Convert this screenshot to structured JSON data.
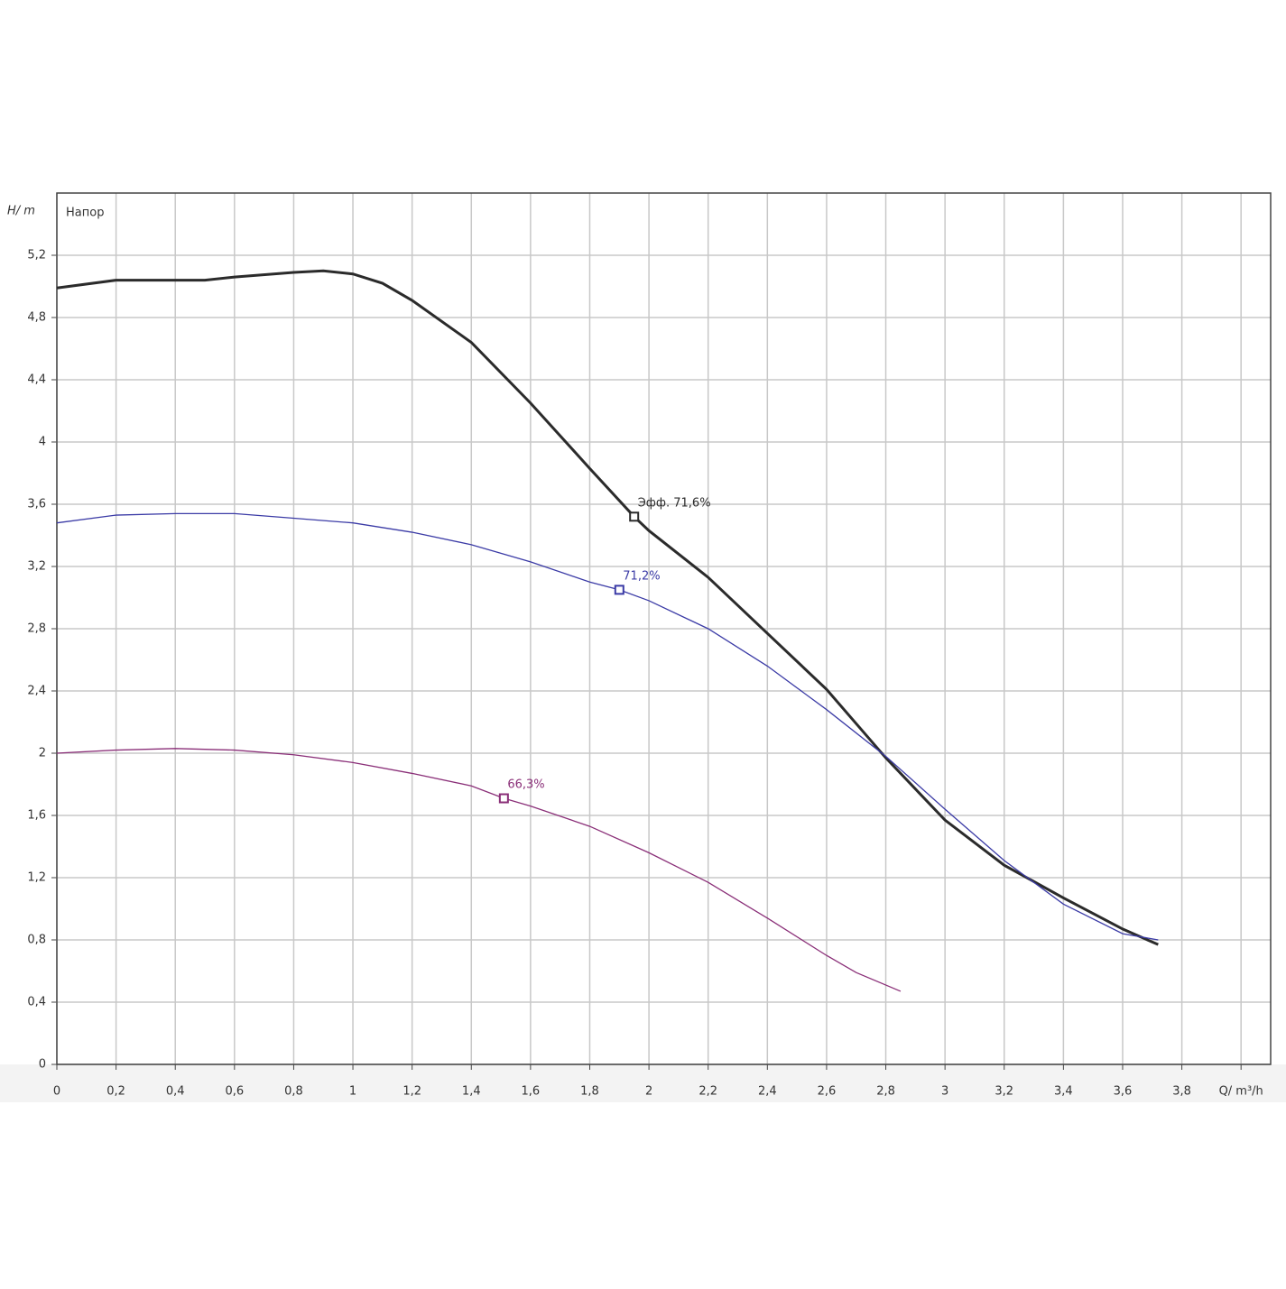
{
  "chart_data": {
    "type": "line",
    "y_label": "H/ m",
    "annotation": "Напор",
    "xlim": [
      0,
      4.1
    ],
    "ylim": [
      0,
      5.6
    ],
    "xticks": [
      0,
      {
        "value": 0.2,
        "label": "0,2"
      },
      {
        "value": 0.4,
        "label": "0,4"
      },
      {
        "value": 0.6,
        "label": "0,6"
      },
      {
        "value": 0.8,
        "label": "0,8"
      },
      1,
      {
        "value": 1.2,
        "label": "1,2"
      },
      {
        "value": 1.4,
        "label": "1,4"
      },
      {
        "value": 1.6,
        "label": "1,6"
      },
      {
        "value": 1.8,
        "label": "1,8"
      },
      2,
      {
        "value": 2.2,
        "label": "2,2"
      },
      {
        "value": 2.4,
        "label": "2,4"
      },
      {
        "value": 2.6,
        "label": "2,6"
      },
      {
        "value": 2.8,
        "label": "2,8"
      },
      3,
      {
        "value": 3.2,
        "label": "3,2"
      },
      {
        "value": 3.4,
        "label": "3,4"
      },
      {
        "value": 3.6,
        "label": "3,6"
      },
      {
        "value": 3.8,
        "label": "3,8"
      },
      {
        "value": 4,
        "label": "Q/ m³/h"
      }
    ],
    "yticks": [
      0,
      {
        "value": 0.4,
        "label": "0,4"
      },
      {
        "value": 0.8,
        "label": "0,8"
      },
      {
        "value": 1.2,
        "label": "1,2"
      },
      {
        "value": 1.6,
        "label": "1,6"
      },
      2,
      {
        "value": 2.4,
        "label": "2,4"
      },
      {
        "value": 2.8,
        "label": "2,8"
      },
      {
        "value": 3.2,
        "label": "3,2"
      },
      {
        "value": 3.6,
        "label": "3,6"
      },
      4,
      {
        "value": 4.4,
        "label": "4,4"
      },
      {
        "value": 4.8,
        "label": "4,8"
      },
      {
        "value": 5.2,
        "label": "5,2"
      }
    ],
    "grid": true,
    "series": [
      {
        "color": "#2b2b2b",
        "width": 3,
        "x": [
          0,
          0.2,
          0.4,
          0.5,
          0.6,
          0.8,
          0.9,
          1.0,
          1.1,
          1.2,
          1.4,
          1.6,
          1.8,
          1.95,
          2.0,
          2.2,
          2.4,
          2.6,
          2.8,
          3.0,
          3.2,
          3.4,
          3.6,
          3.72
        ],
        "values": [
          4.99,
          5.04,
          5.04,
          5.04,
          5.06,
          5.09,
          5.1,
          5.08,
          5.02,
          4.91,
          4.64,
          4.25,
          3.83,
          3.52,
          3.43,
          3.13,
          2.77,
          2.41,
          1.97,
          1.57,
          1.28,
          1.07,
          0.87,
          0.77
        ],
        "marker": {
          "x": 1.95,
          "y": 3.52,
          "label": "Эфф. 71,6%"
        }
      },
      {
        "color": "#3b3ba6",
        "width": 1.3,
        "x": [
          0,
          0.2,
          0.4,
          0.6,
          0.8,
          1.0,
          1.2,
          1.4,
          1.6,
          1.8,
          1.9,
          2.0,
          2.2,
          2.4,
          2.6,
          2.8,
          3.0,
          3.2,
          3.4,
          3.6,
          3.72
        ],
        "values": [
          3.48,
          3.53,
          3.54,
          3.54,
          3.51,
          3.48,
          3.42,
          3.34,
          3.23,
          3.1,
          3.05,
          2.98,
          2.8,
          2.56,
          2.28,
          1.98,
          1.64,
          1.31,
          1.03,
          0.84,
          0.8
        ],
        "marker": {
          "x": 1.9,
          "y": 3.05,
          "label": "71,2%"
        }
      },
      {
        "color": "#8a2f78",
        "width": 1.3,
        "x": [
          0,
          0.2,
          0.4,
          0.6,
          0.8,
          1.0,
          1.2,
          1.4,
          1.51,
          1.6,
          1.8,
          2.0,
          2.2,
          2.4,
          2.6,
          2.7,
          2.85
        ],
        "values": [
          2.0,
          2.02,
          2.03,
          2.02,
          1.99,
          1.94,
          1.87,
          1.79,
          1.71,
          1.66,
          1.53,
          1.36,
          1.17,
          0.94,
          0.7,
          0.59,
          0.47
        ],
        "marker": {
          "x": 1.51,
          "y": 1.71,
          "label": "66,3%"
        }
      }
    ]
  }
}
